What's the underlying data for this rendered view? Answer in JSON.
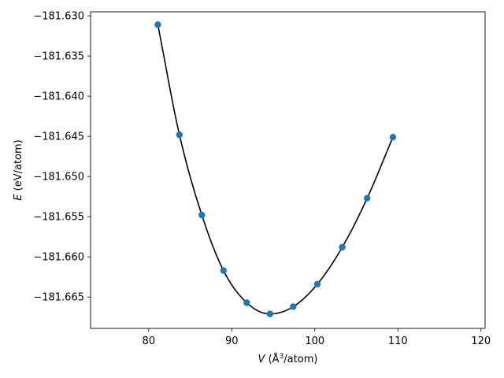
{
  "chart_data": {
    "type": "scatter",
    "title": "",
    "xlabel_var": "V",
    "xlabel_unit_pre": " (Å",
    "xlabel_sup": "3",
    "xlabel_unit_post": "/atom)",
    "ylabel_var": "E",
    "ylabel_unit": " (eV/atom)",
    "xlim": [
      73,
      120.5
    ],
    "ylim": [
      -181.6689,
      -181.6295
    ],
    "xticks": [
      80,
      90,
      100,
      110,
      120
    ],
    "xtick_labels": [
      "80",
      "90",
      "100",
      "110",
      "120"
    ],
    "yticks": [
      -181.63,
      -181.635,
      -181.64,
      -181.645,
      -181.65,
      -181.655,
      -181.66,
      -181.665
    ],
    "ytick_labels": [
      "−181.630",
      "−181.635",
      "−181.640",
      "−181.645",
      "−181.650",
      "−181.655",
      "−181.660",
      "−181.665"
    ],
    "grid": false,
    "series": [
      {
        "type": "scatter",
        "color": "#1f77b4",
        "x": [
          81.1,
          83.7,
          86.4,
          89.0,
          91.8,
          94.6,
          97.4,
          100.3,
          103.3,
          106.3,
          109.4
        ],
        "y": [
          -181.6311,
          -181.6448,
          -181.6548,
          -181.6617,
          -181.6657,
          -181.6671,
          -181.6662,
          -181.6634,
          -181.6588,
          -181.6527,
          -181.6451
        ]
      },
      {
        "type": "line",
        "color": "#000000",
        "fit": "birch-murnaghan",
        "E0": -181.66715,
        "V0": 94.9,
        "x_range": [
          81.1,
          109.4
        ],
        "knots_x": [
          81.1,
          83.7,
          86.4,
          89.0,
          91.8,
          94.6,
          97.4,
          100.3,
          103.3,
          106.3,
          109.4
        ],
        "knots_y": [
          -181.6311,
          -181.6448,
          -181.6548,
          -181.6617,
          -181.6657,
          -181.6671,
          -181.6662,
          -181.6634,
          -181.6588,
          -181.6527,
          -181.6451
        ]
      }
    ]
  }
}
